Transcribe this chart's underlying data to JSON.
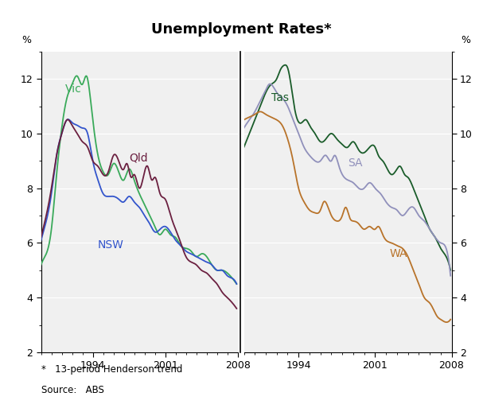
{
  "title": "Unemployment Rates*",
  "footnote1": "*   13-period Henderson trend",
  "footnote2": "Source:   ABS",
  "ylim": [
    2,
    13
  ],
  "yticks": [
    2,
    4,
    6,
    8,
    10,
    12
  ],
  "background_color": "#f0f0f0",
  "colors": {
    "Vic": "#3aaa5a",
    "NSW": "#3355cc",
    "Qld": "#6b2040",
    "Tas": "#1a5c2a",
    "SA": "#9090bb",
    "WA": "#b8732a"
  },
  "vic_t": [
    1989.0,
    1989.5,
    1990.0,
    1990.5,
    1991.0,
    1991.5,
    1992.0,
    1992.5,
    1993.0,
    1993.4,
    1993.7,
    1994.0,
    1994.5,
    1995.0,
    1995.5,
    1996.0,
    1996.5,
    1997.0,
    1997.5,
    1998.0,
    1998.5,
    1999.0,
    1999.5,
    2000.0,
    2000.5,
    2001.0,
    2001.5,
    2002.0,
    2002.5,
    2003.0,
    2003.5,
    2004.0,
    2004.5,
    2005.0,
    2005.5,
    2006.0,
    2006.5,
    2007.0,
    2007.5,
    2007.9
  ],
  "vic_v": [
    5.2,
    5.6,
    6.5,
    8.5,
    10.2,
    11.3,
    11.8,
    12.1,
    11.8,
    12.1,
    11.5,
    10.5,
    9.2,
    8.6,
    8.5,
    8.9,
    8.6,
    8.3,
    8.7,
    8.3,
    7.8,
    7.4,
    7.0,
    6.6,
    6.3,
    6.5,
    6.3,
    6.2,
    5.9,
    5.8,
    5.7,
    5.5,
    5.6,
    5.5,
    5.2,
    5.0,
    5.0,
    4.9,
    4.7,
    4.5
  ],
  "nsw_t": [
    1989.0,
    1989.5,
    1990.0,
    1990.5,
    1991.0,
    1991.5,
    1992.0,
    1992.5,
    1993.0,
    1993.5,
    1994.0,
    1994.5,
    1995.0,
    1995.5,
    1996.0,
    1996.5,
    1997.0,
    1997.5,
    1998.0,
    1998.5,
    1999.0,
    1999.5,
    2000.0,
    2000.5,
    2001.0,
    2001.5,
    2002.0,
    2002.5,
    2003.0,
    2003.5,
    2004.0,
    2004.5,
    2005.0,
    2005.5,
    2006.0,
    2006.5,
    2007.0,
    2007.5,
    2007.9
  ],
  "nsw_v": [
    6.1,
    6.8,
    7.8,
    9.2,
    10.0,
    10.5,
    10.4,
    10.3,
    10.2,
    10.0,
    9.0,
    8.3,
    7.8,
    7.7,
    7.7,
    7.6,
    7.5,
    7.7,
    7.5,
    7.3,
    7.0,
    6.7,
    6.4,
    6.5,
    6.6,
    6.4,
    6.1,
    5.9,
    5.7,
    5.6,
    5.5,
    5.4,
    5.3,
    5.2,
    5.0,
    5.0,
    4.8,
    4.7,
    4.5
  ],
  "qld_t": [
    1989.0,
    1989.5,
    1990.0,
    1990.5,
    1991.0,
    1991.5,
    1992.0,
    1992.5,
    1993.0,
    1993.5,
    1994.0,
    1994.5,
    1995.0,
    1995.5,
    1996.0,
    1996.5,
    1997.0,
    1997.3,
    1997.7,
    1998.0,
    1998.5,
    1999.0,
    1999.3,
    1999.7,
    2000.0,
    2000.5,
    2001.0,
    2001.3,
    2001.7,
    2002.0,
    2002.5,
    2003.0,
    2003.5,
    2004.0,
    2004.5,
    2005.0,
    2005.5,
    2006.0,
    2006.5,
    2007.0,
    2007.5,
    2007.9
  ],
  "qld_v": [
    6.2,
    7.0,
    8.0,
    9.2,
    10.0,
    10.5,
    10.3,
    10.0,
    9.7,
    9.5,
    9.0,
    8.8,
    8.5,
    8.6,
    9.2,
    9.0,
    8.7,
    8.9,
    8.4,
    8.5,
    8.0,
    8.6,
    8.8,
    8.3,
    8.4,
    7.8,
    7.6,
    7.3,
    6.8,
    6.5,
    6.0,
    5.5,
    5.3,
    5.2,
    5.0,
    4.9,
    4.7,
    4.5,
    4.2,
    4.0,
    3.8,
    3.6
  ],
  "tas_t": [
    1989.0,
    1989.5,
    1990.0,
    1990.5,
    1991.0,
    1991.5,
    1992.0,
    1992.3,
    1992.7,
    1993.0,
    1993.3,
    1993.6,
    1993.9,
    1994.3,
    1994.7,
    1995.0,
    1995.5,
    1996.0,
    1996.5,
    1997.0,
    1997.5,
    1998.0,
    1998.5,
    1999.0,
    1999.5,
    2000.0,
    2000.5,
    2001.0,
    2001.3,
    2001.7,
    2002.0,
    2002.5,
    2003.0,
    2003.3,
    2003.7,
    2004.0,
    2004.5,
    2005.0,
    2005.5,
    2006.0,
    2006.5,
    2007.0,
    2007.5,
    2007.9
  ],
  "tas_v": [
    9.5,
    10.0,
    10.5,
    11.0,
    11.5,
    11.8,
    12.0,
    12.3,
    12.5,
    12.4,
    11.8,
    11.0,
    10.5,
    10.4,
    10.5,
    10.3,
    10.0,
    9.7,
    9.8,
    10.0,
    9.8,
    9.6,
    9.5,
    9.7,
    9.4,
    9.3,
    9.5,
    9.5,
    9.2,
    9.0,
    8.8,
    8.5,
    8.7,
    8.8,
    8.5,
    8.4,
    8.0,
    7.5,
    7.0,
    6.5,
    6.2,
    5.8,
    5.5,
    5.0
  ],
  "sa_t": [
    1989.0,
    1989.5,
    1990.0,
    1990.5,
    1991.0,
    1991.3,
    1991.7,
    1992.0,
    1992.5,
    1993.0,
    1993.5,
    1994.0,
    1994.5,
    1995.0,
    1995.5,
    1996.0,
    1996.5,
    1997.0,
    1997.3,
    1997.7,
    1998.0,
    1998.5,
    1999.0,
    1999.5,
    2000.0,
    2000.5,
    2001.0,
    2001.5,
    2002.0,
    2002.5,
    2003.0,
    2003.5,
    2004.0,
    2004.5,
    2005.0,
    2005.5,
    2006.0,
    2006.5,
    2007.0,
    2007.5,
    2007.9
  ],
  "sa_v": [
    10.2,
    10.5,
    10.8,
    11.2,
    11.6,
    11.8,
    11.7,
    11.5,
    11.3,
    11.0,
    10.5,
    10.0,
    9.5,
    9.2,
    9.0,
    9.0,
    9.2,
    9.0,
    9.2,
    8.8,
    8.5,
    8.3,
    8.2,
    8.0,
    8.0,
    8.2,
    8.0,
    7.8,
    7.5,
    7.3,
    7.2,
    7.0,
    7.2,
    7.3,
    7.0,
    6.8,
    6.5,
    6.2,
    6.0,
    5.8,
    4.8
  ],
  "wa_t": [
    1989.0,
    1989.5,
    1990.0,
    1990.5,
    1991.0,
    1991.5,
    1992.0,
    1992.5,
    1993.0,
    1993.5,
    1994.0,
    1994.5,
    1995.0,
    1995.5,
    1996.0,
    1996.3,
    1996.7,
    1997.0,
    1997.5,
    1998.0,
    1998.3,
    1998.7,
    1999.0,
    1999.5,
    2000.0,
    2000.5,
    2001.0,
    2001.3,
    2001.7,
    2002.0,
    2002.5,
    2003.0,
    2003.5,
    2004.0,
    2004.5,
    2005.0,
    2005.5,
    2006.0,
    2006.3,
    2006.7,
    2007.0,
    2007.5,
    2007.9
  ],
  "wa_v": [
    10.5,
    10.6,
    10.7,
    10.8,
    10.7,
    10.6,
    10.5,
    10.3,
    9.8,
    9.0,
    8.0,
    7.5,
    7.2,
    7.1,
    7.2,
    7.5,
    7.3,
    7.0,
    6.8,
    7.0,
    7.3,
    6.9,
    6.8,
    6.7,
    6.5,
    6.6,
    6.5,
    6.6,
    6.3,
    6.1,
    6.0,
    5.9,
    5.8,
    5.5,
    5.0,
    4.5,
    4.0,
    3.8,
    3.6,
    3.3,
    3.2,
    3.1,
    3.2
  ]
}
